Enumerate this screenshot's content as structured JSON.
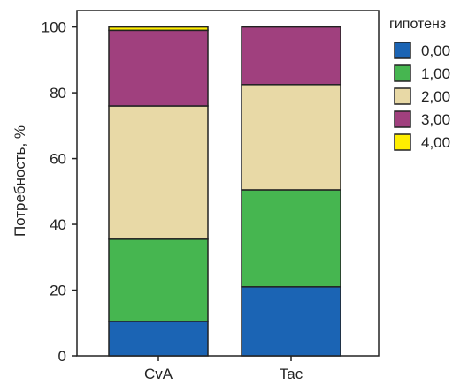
{
  "chart_data": {
    "type": "bar",
    "stacked": true,
    "categories": [
      "CvA",
      "Tac"
    ],
    "ylabel": "Потребность, %",
    "ylim": [
      0,
      105
    ],
    "yticks": [
      0,
      20,
      40,
      60,
      80,
      100
    ],
    "grid": false,
    "legend": {
      "title": "гипотенз",
      "placement": "right",
      "entries": [
        "0,00",
        "1,00",
        "2,00",
        "3,00",
        "4,00"
      ]
    },
    "series": [
      {
        "name": "0,00",
        "color": "#1b64b4",
        "values": [
          10.5,
          21.0
        ]
      },
      {
        "name": "1,00",
        "color": "#46b650",
        "values": [
          25.0,
          29.5
        ]
      },
      {
        "name": "2,00",
        "color": "#e8d9a6",
        "values": [
          40.5,
          32.0
        ]
      },
      {
        "name": "3,00",
        "color": "#a0407e",
        "values": [
          23.0,
          17.5
        ]
      },
      {
        "name": "4,00",
        "color": "#ffee00",
        "values": [
          1.0,
          0.0
        ]
      }
    ]
  }
}
